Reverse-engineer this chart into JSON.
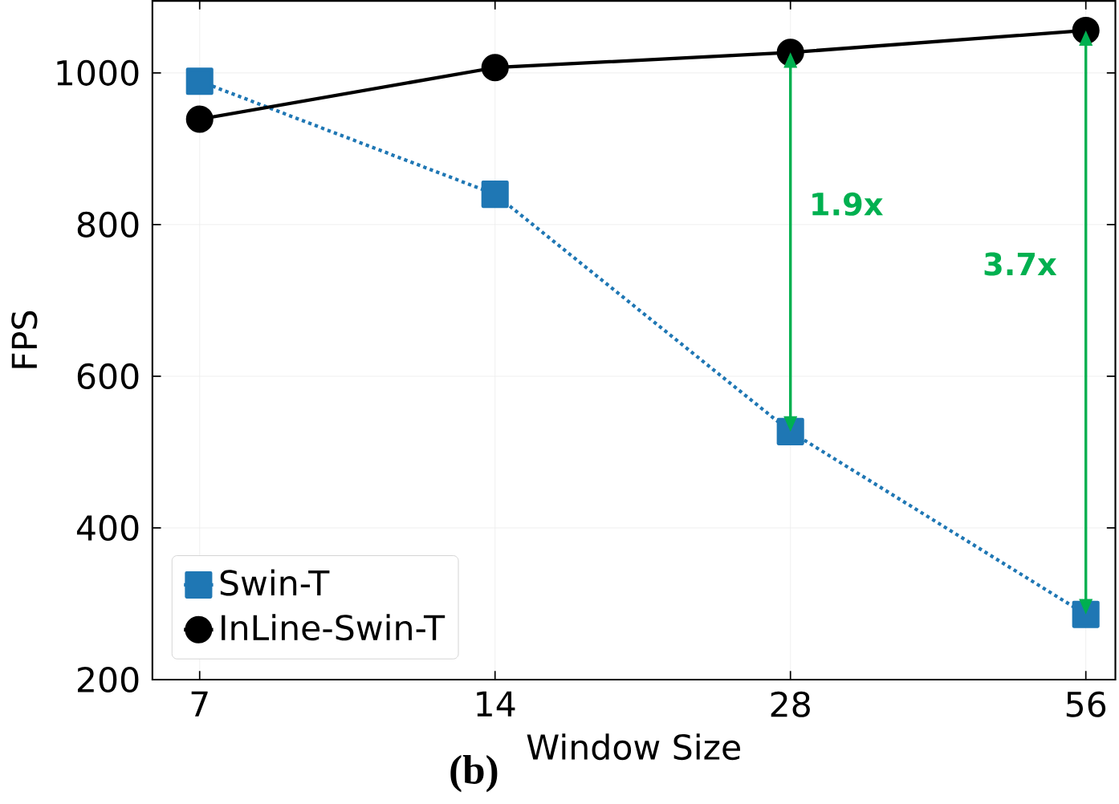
{
  "chart_data": {
    "type": "line",
    "xlabel": "Window Size",
    "ylabel": "FPS",
    "categories": [
      "7",
      "14",
      "28",
      "56"
    ],
    "series": [
      {
        "name": "Swin-T",
        "color": "#1f77b4",
        "values": [
          989,
          840,
          527,
          286
        ],
        "marker": "square",
        "line_style": "dotted"
      },
      {
        "name": "InLine-Swin-T",
        "color": "#000000",
        "values": [
          939,
          1007,
          1027,
          1056
        ],
        "marker": "circle",
        "line_style": "solid"
      }
    ],
    "ylim": [
      200,
      1095
    ],
    "yticks": [
      200,
      400,
      600,
      800,
      1000
    ],
    "grid": true,
    "legend": "bottom left",
    "annotations": [
      "1.9x",
      "3.7x",
      "(b)"
    ]
  }
}
